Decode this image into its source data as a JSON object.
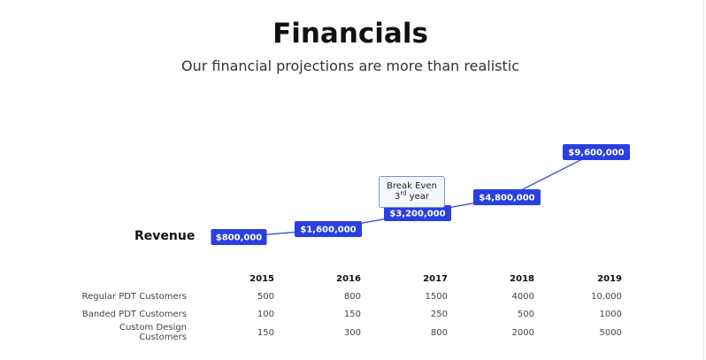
{
  "header": {
    "title": "Financials",
    "subtitle": "Our financial projections are more than realistic"
  },
  "chart_data": {
    "type": "line",
    "series": [
      {
        "name": "Revenue",
        "x": [
          "2015",
          "2016",
          "2017",
          "2018",
          "2019"
        ],
        "values": [
          800000,
          1600000,
          3200000,
          4800000,
          9600000
        ],
        "labels": [
          "$800,000",
          "$1,600,000",
          "$3,200,000",
          "$4,800,000",
          "$9,600,000"
        ]
      }
    ],
    "annotations": [
      {
        "x": "2017",
        "text_line1": "Break Even",
        "text_line2_num": "3",
        "text_line2_sup": "rd",
        "text_line2_rest": " year"
      }
    ],
    "colors": {
      "line": "#2a3fe0",
      "label_bg": "#2a3fe0",
      "label_text": "#ffffff"
    },
    "grid": false,
    "axes_visible": false
  },
  "table": {
    "row_title": "Revenue",
    "years": [
      "2015",
      "2016",
      "2017",
      "2018",
      "2019"
    ],
    "rows": [
      {
        "label": "Regular PDT Customers",
        "values": [
          "500",
          "800",
          "1500",
          "4000",
          "10,000"
        ]
      },
      {
        "label": "Banded PDT Customers",
        "values": [
          "100",
          "150",
          "250",
          "500",
          "1000"
        ]
      },
      {
        "label": "Custom Design Customers",
        "values": [
          "150",
          "300",
          "800",
          "2000",
          "5000"
        ]
      }
    ]
  }
}
